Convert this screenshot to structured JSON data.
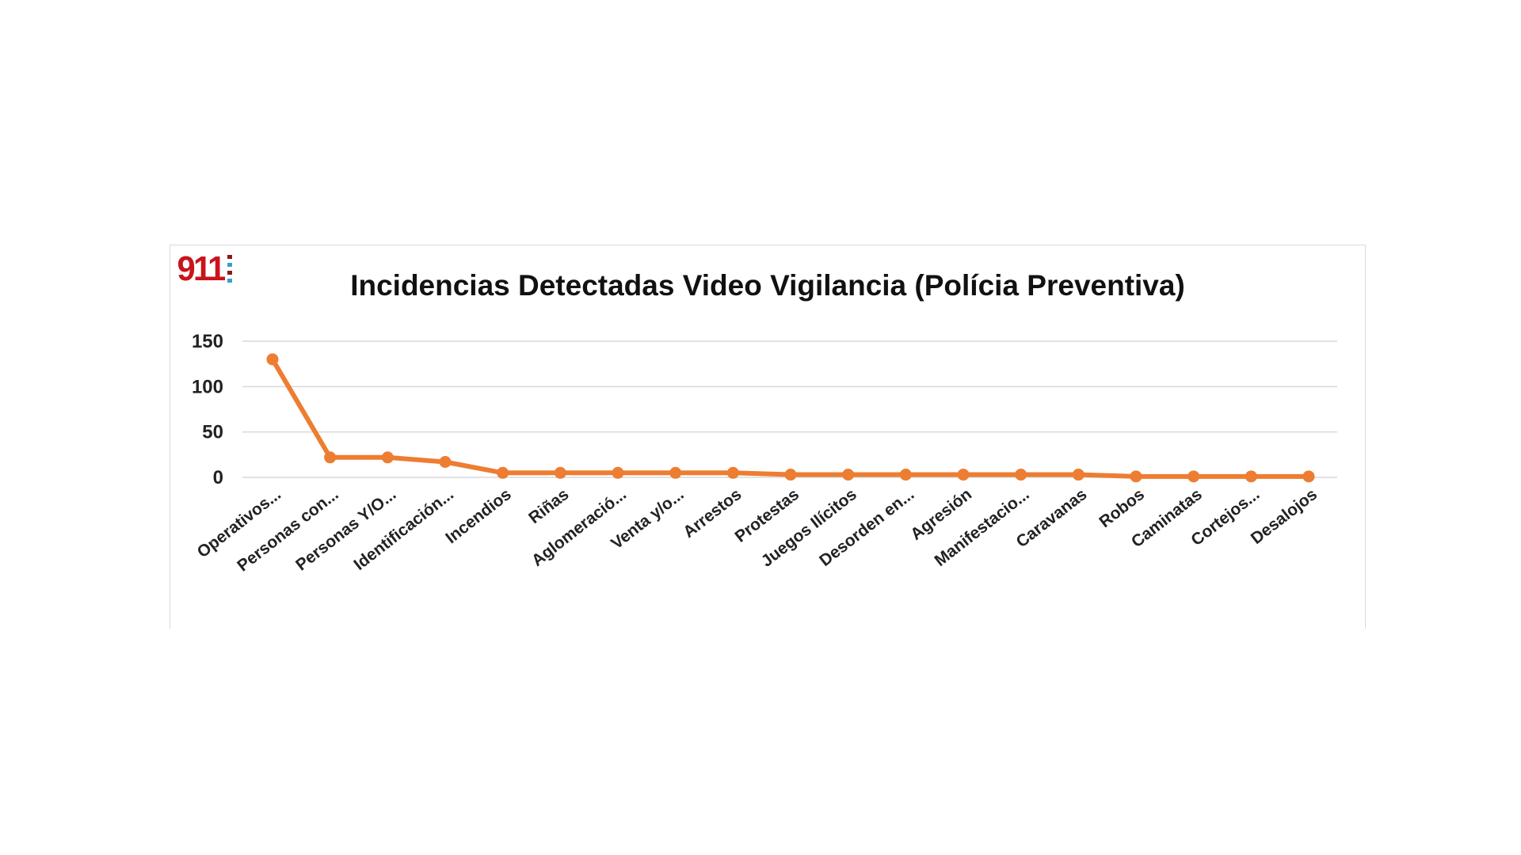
{
  "logo_text": "911",
  "chart_data": {
    "type": "line",
    "title": "Incidencias Detectadas Video Vigilancia (Polícia Preventiva)",
    "xlabel": "",
    "ylabel": "",
    "ylim": [
      0,
      150
    ],
    "yticks": [
      0,
      50,
      100,
      150
    ],
    "ytick_labels": [
      "0",
      "50",
      "100",
      "150"
    ],
    "grid": true,
    "categories": [
      "Operativos...",
      "Personas con...",
      "Personas Y/O...",
      "Identificación...",
      "Incendios",
      "Riñas",
      "Aglomeració...",
      "Venta y/o...",
      "Arrestos",
      "Protestas",
      "Juegos Ilícitos",
      "Desorden en...",
      "Agresión",
      "Manifestacio...",
      "Caravanas",
      "Robos",
      "Caminatas",
      "Cortejos...",
      "Desalojos"
    ],
    "series": [
      {
        "name": "Incidencias",
        "color": "#ed7d31",
        "values": [
          130,
          22,
          22,
          17,
          5,
          5,
          5,
          5,
          5,
          3,
          3,
          3,
          3,
          3,
          3,
          1,
          1,
          1,
          1
        ]
      }
    ]
  }
}
